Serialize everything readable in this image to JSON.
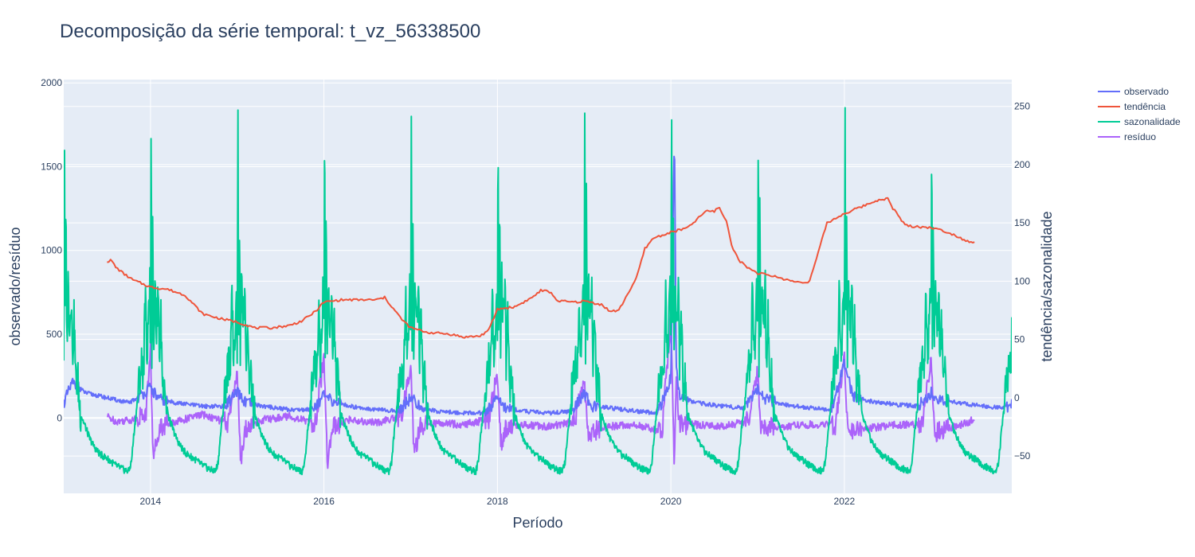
{
  "chart_data": {
    "type": "line",
    "title": "Decomposição da série temporal: t_vz_56338500",
    "xlabel": "Período",
    "ylabel_left": "observado/resíduo",
    "ylabel_right": "tendência/sazonalidade",
    "x_range": [
      2013.0,
      2023.93
    ],
    "y_left_range": [
      -450,
      2020
    ],
    "y_right_range": [
      -82,
      273
    ],
    "x_ticks": [
      2014,
      2016,
      2018,
      2020,
      2022
    ],
    "x_tick_labels": [
      "2014",
      "2016",
      "2018",
      "2020",
      "2022"
    ],
    "y_left_ticks": [
      0,
      500,
      1000,
      1500,
      2000
    ],
    "y_left_tick_labels": [
      "0",
      "500",
      "1000",
      "1500",
      "2000"
    ],
    "y_right_ticks": [
      -50,
      0,
      50,
      100,
      150,
      200,
      250
    ],
    "y_right_tick_labels": [
      "−50",
      "0",
      "50",
      "100",
      "150",
      "200",
      "250"
    ],
    "grid": true,
    "legend_position": "top-right",
    "series": [
      {
        "name": "observado",
        "axis": "left",
        "color": "#636efa",
        "x": [
          2013.0,
          2013.1,
          2013.25,
          2013.5,
          2013.75,
          2013.85,
          2014.0,
          2014.1,
          2014.3,
          2014.6,
          2014.85,
          2015.0,
          2015.1,
          2015.3,
          2015.6,
          2015.85,
          2016.0,
          2016.1,
          2016.3,
          2016.6,
          2016.85,
          2017.0,
          2017.1,
          2017.3,
          2017.6,
          2017.85,
          2018.0,
          2018.1,
          2018.3,
          2018.6,
          2018.85,
          2019.0,
          2019.1,
          2019.3,
          2019.6,
          2019.85,
          2020.0,
          2020.04,
          2020.06,
          2020.1,
          2020.3,
          2020.6,
          2020.85,
          2021.0,
          2021.1,
          2021.3,
          2021.6,
          2021.85,
          2022.0,
          2022.1,
          2022.3,
          2022.6,
          2022.85,
          2023.0,
          2023.1,
          2023.3,
          2023.6,
          2023.85,
          2023.93
        ],
        "y": [
          90,
          210,
          150,
          120,
          90,
          120,
          180,
          110,
          90,
          70,
          70,
          150,
          90,
          70,
          50,
          50,
          130,
          100,
          70,
          50,
          40,
          120,
          70,
          40,
          30,
          30,
          110,
          60,
          40,
          30,
          40,
          140,
          70,
          60,
          40,
          30,
          240,
          1730,
          300,
          120,
          90,
          70,
          60,
          180,
          110,
          80,
          60,
          50,
          320,
          130,
          100,
          80,
          70,
          150,
          110,
          90,
          70,
          60,
          80
        ]
      },
      {
        "name": "tendência",
        "axis": "right",
        "color": "#EF553B",
        "x": [
          2013.5,
          2013.55,
          2013.6,
          2013.7,
          2013.8,
          2013.9,
          2014.0,
          2014.2,
          2014.4,
          2014.6,
          2014.8,
          2015.0,
          2015.2,
          2015.4,
          2015.6,
          2015.75,
          2015.9,
          2016.0,
          2016.2,
          2016.4,
          2016.5,
          2016.6,
          2016.7,
          2016.9,
          2017.0,
          2017.2,
          2017.4,
          2017.5,
          2017.6,
          2017.8,
          2017.9,
          2018.0,
          2018.2,
          2018.4,
          2018.5,
          2018.6,
          2018.7,
          2018.9,
          2019.0,
          2019.2,
          2019.3,
          2019.4,
          2019.5,
          2019.6,
          2019.7,
          2019.8,
          2020.0,
          2020.2,
          2020.4,
          2020.5,
          2020.55,
          2020.65,
          2020.7,
          2020.8,
          2020.9,
          2021.0,
          2021.2,
          2021.3,
          2021.4,
          2021.5,
          2021.6,
          2021.7,
          2021.8,
          2022.0,
          2022.2,
          2022.4,
          2022.5,
          2022.55,
          2022.6,
          2022.7,
          2022.8,
          2023.0,
          2023.2,
          2023.4,
          2023.5
        ],
        "y": [
          117,
          118,
          112,
          106,
          101,
          98,
          95,
          93,
          88,
          72,
          68,
          65,
          60,
          60,
          62,
          66,
          74,
          82,
          84,
          84,
          84,
          84,
          86,
          67,
          60,
          56,
          55,
          54,
          52,
          53,
          58,
          76,
          78,
          86,
          92,
          91,
          83,
          82,
          83,
          80,
          74,
          75,
          89,
          102,
          128,
          137,
          142,
          146,
          160,
          160,
          164,
          150,
          130,
          117,
          111,
          107,
          104,
          102,
          100,
          99,
          100,
          125,
          150,
          158,
          164,
          170,
          171,
          163,
          159,
          148,
          147,
          146,
          142,
          135,
          133
        ]
      },
      {
        "name": "sazonalidade",
        "axis": "right",
        "color": "#00cc96",
        "cycle_years": 1,
        "profile_phase": [
          0,
          0.008,
          0.015,
          0.025,
          0.035,
          0.05,
          0.07,
          0.09,
          0.1,
          0.12,
          0.14,
          0.16,
          0.18,
          0.2,
          0.25,
          0.3,
          0.35,
          0.4,
          0.45,
          0.5,
          0.55,
          0.6,
          0.65,
          0.7,
          0.75,
          0.78,
          0.81,
          0.84,
          0.87,
          0.9,
          0.92,
          0.94,
          0.96,
          0.975,
          0.985,
          0.993,
          1.0
        ],
        "profile_values": [
          40,
          255,
          30,
          170,
          40,
          100,
          60,
          95,
          30,
          70,
          10,
          20,
          -5,
          -15,
          -25,
          -35,
          -42,
          -47,
          -50,
          -52,
          -55,
          -58,
          -60,
          -62,
          -63,
          -55,
          -30,
          -10,
          15,
          30,
          20,
          90,
          30,
          60,
          80,
          100,
          40
        ]
      },
      {
        "name": "resíduo",
        "axis": "left",
        "color": "#ab63fa",
        "x": [
          2013.5,
          2013.6,
          2013.8,
          2013.95,
          2014.0,
          2014.03,
          2014.1,
          2014.3,
          2014.6,
          2014.9,
          2015.0,
          2015.04,
          2015.1,
          2015.3,
          2015.6,
          2015.9,
          2016.0,
          2016.04,
          2016.1,
          2016.3,
          2016.6,
          2016.9,
          2017.0,
          2017.04,
          2017.1,
          2017.3,
          2017.6,
          2017.9,
          2018.0,
          2018.04,
          2018.1,
          2018.3,
          2018.6,
          2018.9,
          2019.0,
          2019.04,
          2019.1,
          2019.3,
          2019.6,
          2019.9,
          2020.0,
          2020.04,
          2020.06,
          2020.1,
          2020.3,
          2020.6,
          2020.9,
          2021.0,
          2021.04,
          2021.1,
          2021.3,
          2021.6,
          2021.9,
          2022.0,
          2022.04,
          2022.1,
          2022.3,
          2022.6,
          2022.9,
          2023.0,
          2023.04,
          2023.1,
          2023.3,
          2023.5
        ],
        "y": [
          10,
          -20,
          -10,
          30,
          420,
          -250,
          -50,
          -20,
          20,
          -30,
          300,
          -280,
          -60,
          -10,
          10,
          -30,
          360,
          -260,
          -60,
          -10,
          -30,
          10,
          330,
          -250,
          -50,
          -30,
          -40,
          -10,
          270,
          -160,
          -60,
          -40,
          -50,
          -20,
          260,
          -100,
          -80,
          -50,
          -40,
          -80,
          600,
          -310,
          200,
          -40,
          -40,
          -50,
          -20,
          280,
          -80,
          -60,
          -50,
          -40,
          -40,
          380,
          -100,
          -80,
          -60,
          -40,
          -40,
          340,
          -90,
          -70,
          -50,
          -10
        ]
      }
    ]
  }
}
